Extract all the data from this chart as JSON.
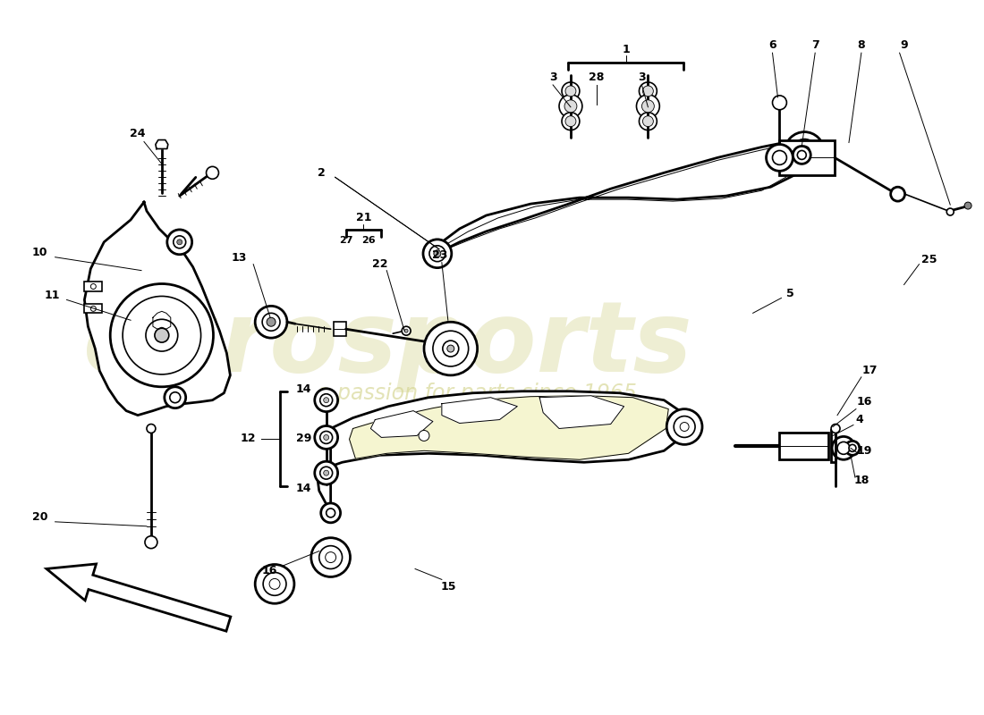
{
  "background_color": "#ffffff",
  "line_color": "#000000",
  "watermark_color": "#e0e0b0",
  "watermark2_color": "#d4d490"
}
